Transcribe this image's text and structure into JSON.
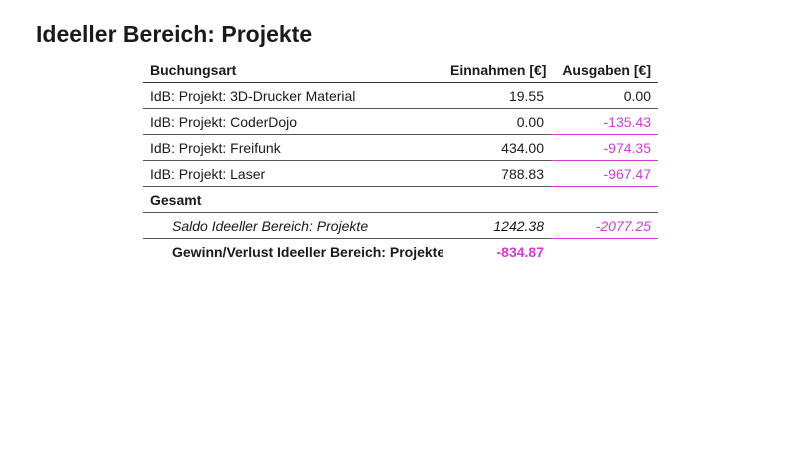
{
  "page": {
    "title": "Ideeller Bereich: Projekte"
  },
  "table": {
    "headers": {
      "category": "Buchungsart",
      "income": "Einnahmen [€]",
      "expenses": "Ausgaben [€]"
    },
    "rows": [
      {
        "category": "IdB: Projekt: 3D-Drucker Material",
        "income": "19.55",
        "expenses": "0.00"
      },
      {
        "category": "IdB: Projekt: CoderDojo",
        "income": "0.00",
        "expenses": "-135.43"
      },
      {
        "category": "IdB: Projekt: Freifunk",
        "income": "434.00",
        "expenses": "-974.35"
      },
      {
        "category": "IdB: Projekt: Laser",
        "income": "788.83",
        "expenses": "-967.47"
      }
    ],
    "group_label": "Gesamt",
    "saldo": {
      "label": "Saldo Ideeller Bereich: Projekte",
      "income": "1242.38",
      "expenses": "-2077.25"
    },
    "result": {
      "label": "Gewinn/Verlust Ideeller Bereich: Projekte",
      "value": "-834.87"
    }
  },
  "colors": {
    "negative": "#d63ad6",
    "text": "#1a1a1a"
  }
}
